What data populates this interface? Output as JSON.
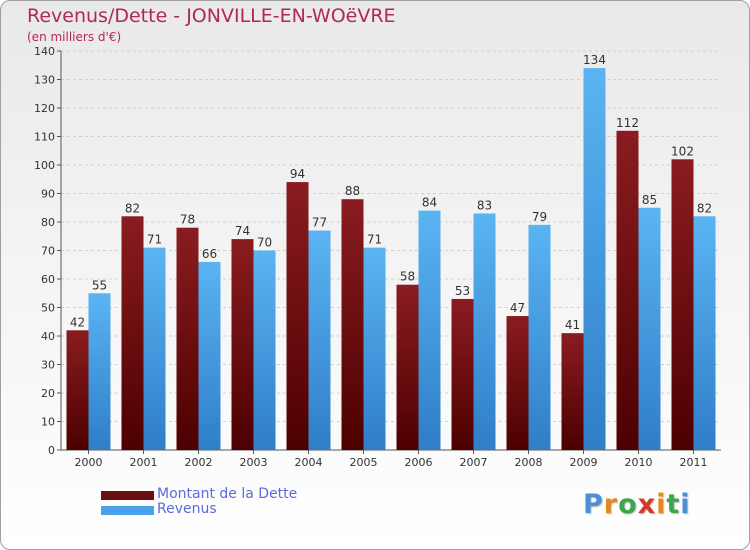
{
  "header": {
    "title": "Revenus/Dette - JONVILLE-EN-WOëVRE",
    "subtitle": "(en milliers d'€)"
  },
  "legend": {
    "items": [
      {
        "label": "Montant de la Dette",
        "color": "#6b0f12"
      },
      {
        "label": "Revenus",
        "color": "#4aa3e8"
      }
    ]
  },
  "logo": {
    "text": "Proxiti",
    "colors": [
      "#4a8fd8",
      "#e8871e",
      "#3aa84a",
      "#d8362b",
      "#e8871e",
      "#3aa84a",
      "#4a8fd8"
    ]
  },
  "chart_data": {
    "type": "bar",
    "categories": [
      "2000",
      "2001",
      "2002",
      "2003",
      "2004",
      "2005",
      "2006",
      "2007",
      "2008",
      "2009",
      "2010",
      "2011"
    ],
    "series": [
      {
        "name": "Montant de la Dette",
        "color": "#7a1418",
        "values": [
          42,
          82,
          78,
          74,
          94,
          88,
          58,
          53,
          47,
          41,
          112,
          102
        ]
      },
      {
        "name": "Revenus",
        "color": "#4fa8ea",
        "values": [
          55,
          71,
          66,
          70,
          77,
          71,
          84,
          83,
          79,
          134,
          85,
          82
        ]
      }
    ],
    "y_ticks": [
      "0",
      "10",
      "20",
      "30",
      "40",
      "50",
      "60",
      "70",
      "80",
      "90",
      "100",
      "110",
      "120",
      "130",
      "140"
    ],
    "ylim": [
      0,
      140
    ],
    "grid": true,
    "legend_position": "bottom-left"
  }
}
